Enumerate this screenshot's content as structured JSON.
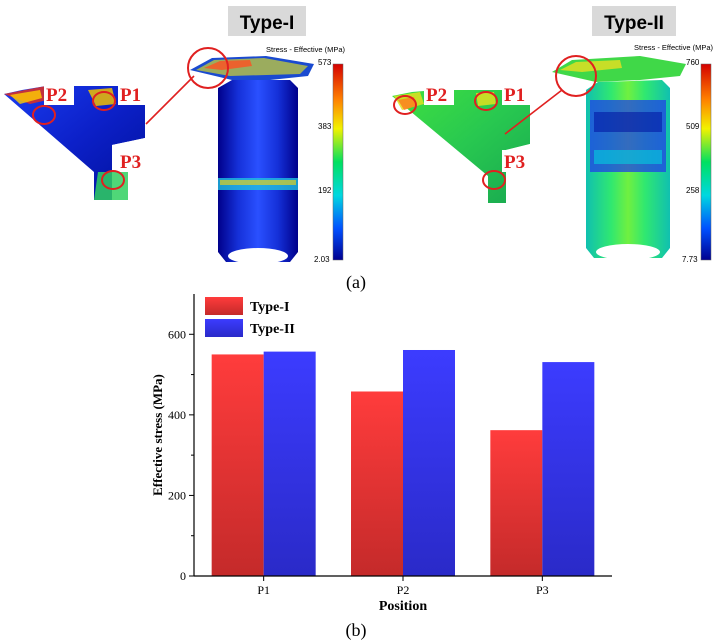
{
  "panel_a": {
    "caption": "(a)",
    "type1": {
      "title": "Type-I",
      "legend_title": "Stress - Effective (MPa)",
      "legend_ticks": [
        "573",
        "383",
        "192",
        "2.03"
      ],
      "labels": [
        "P2",
        "P1",
        "P3"
      ]
    },
    "type2": {
      "title": "Type-II",
      "legend_title": "Stress - Effective (MPa)",
      "legend_ticks": [
        "760",
        "509",
        "258",
        "7.73"
      ],
      "labels": [
        "P2",
        "P1",
        "P3"
      ]
    },
    "colors": {
      "marker": "#e02020",
      "label": "#e02020"
    }
  },
  "panel_b": {
    "caption": "(b)"
  },
  "chart_data": {
    "type": "bar",
    "categories": [
      "P1",
      "P2",
      "P3"
    ],
    "series": [
      {
        "name": "Type-I",
        "values": [
          550,
          458,
          362
        ],
        "color_top": "#ff3c3c",
        "color_bottom": "#c42a2a"
      },
      {
        "name": "Type-II",
        "values": [
          557,
          561,
          531
        ],
        "color_top": "#3c3cff",
        "color_bottom": "#2a2ac8"
      }
    ],
    "xlabel": "Position",
    "ylabel": "Effective stress (MPa)",
    "ylim": [
      0,
      700
    ],
    "yticks": [
      0,
      200,
      400,
      600
    ],
    "legend": "top-left",
    "grid": false
  }
}
